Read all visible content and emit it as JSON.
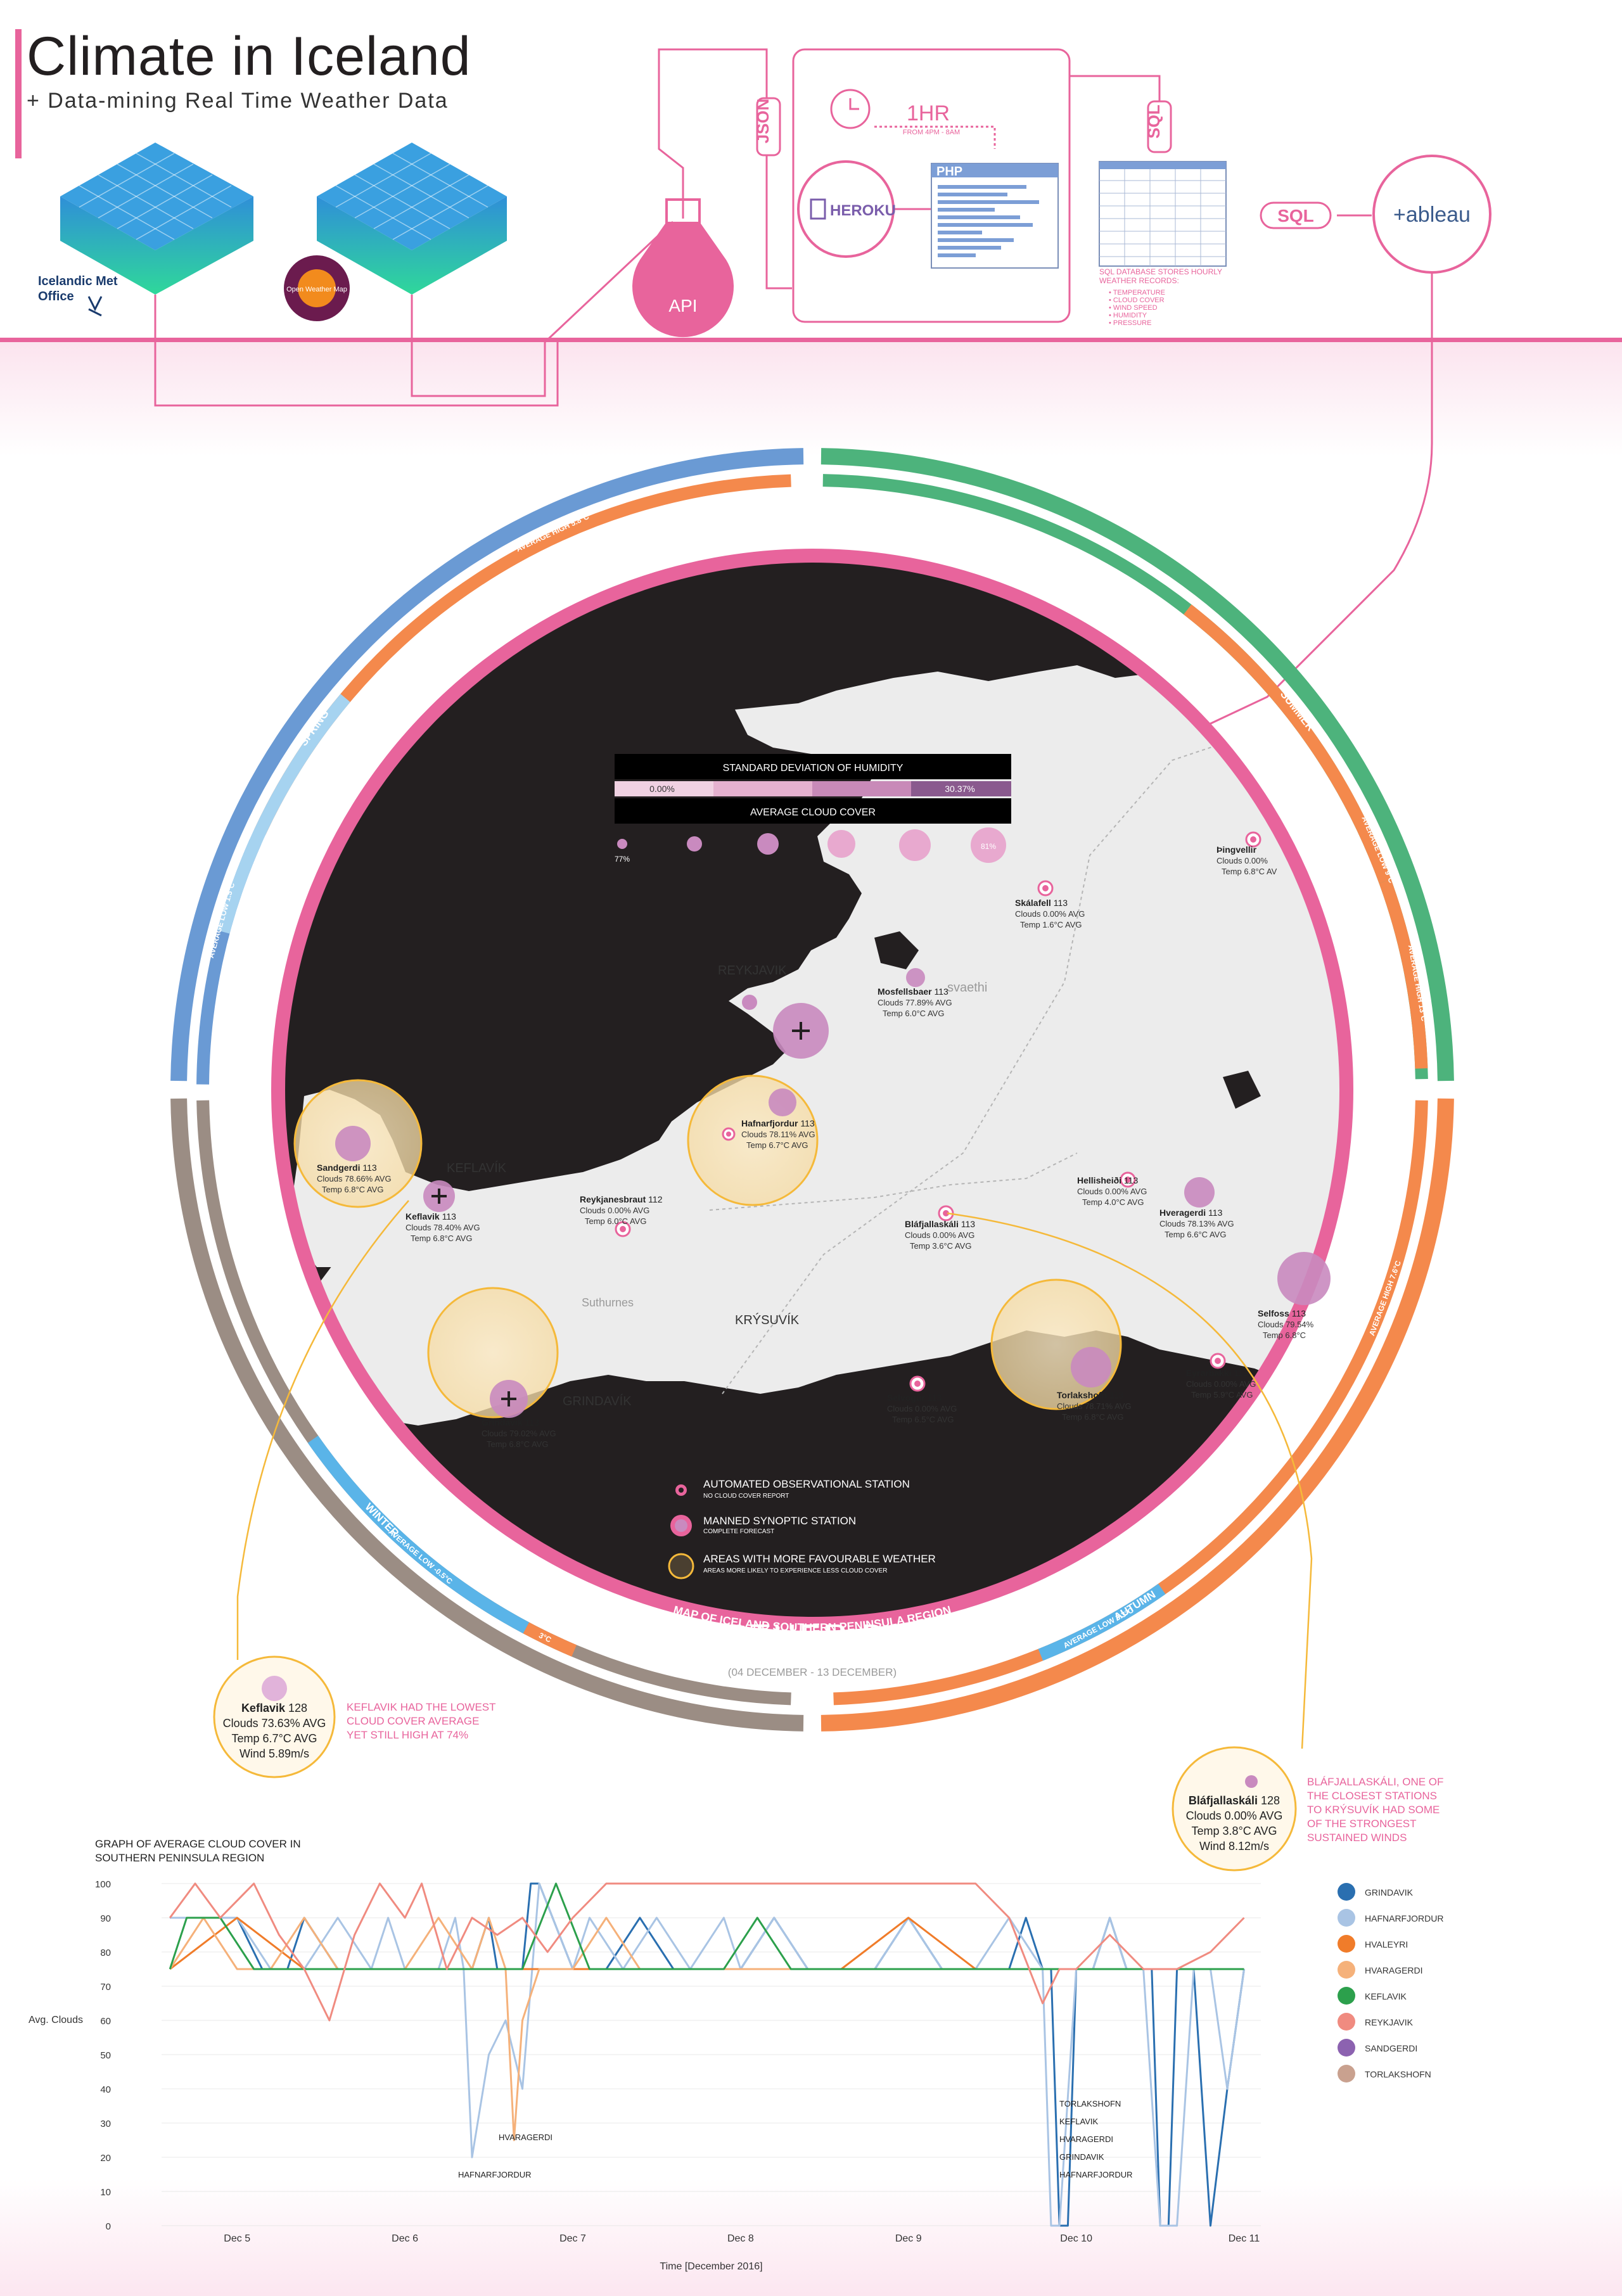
{
  "header": {
    "title": "Climate in Iceland",
    "subtitle": "+ Data-mining Real Time Weather Data"
  },
  "pipeline": {
    "source1": "Icelandic Met Office",
    "source2": "Open Weather Map",
    "json": "JSON",
    "api": "API",
    "interval": "1HR",
    "interval_note": "FROM 4PM - 8AM",
    "heroku": "HEROKU",
    "php": "PHP",
    "sql_vertical": "SQL",
    "sql_arrow": "SQL",
    "tableau": "+ableau",
    "db_note": [
      "SQL DATABASE STORES HOURLY",
      "WEATHER RECORDS:"
    ],
    "db_items": [
      "TEMPERATURE",
      "CLOUD COVER",
      "WIND SPEED",
      "HUMIDITY",
      "PRESSURE"
    ]
  },
  "seasons": {
    "spring": "SPRING",
    "summer": "SUMMER",
    "autumn": "AUTUMN",
    "winter": "WINTER",
    "spring_high": "AVERAGE HIGH 5.8°C",
    "summer_low": "AVERAGE LOW 9°C",
    "summer_high": "AVERAGE HIGH 13°C",
    "autumn_high": "AVERAGE HIGH 7.6°C",
    "autumn_low": "AVERAGE LOW 3.3°C",
    "winter_low": "AVERAGE LOW -0.5°C",
    "winter_high": "3°C",
    "spring_low": "AVERAGE LOW 1.5°C"
  },
  "map": {
    "legend_humidity_title": "STANDARD DEVIATION OF HUMIDITY",
    "legend_humidity_min": "0.00%",
    "legend_humidity_max": "30.37%",
    "legend_cloud_title": "AVERAGE CLOUD COVER",
    "legend_cloud_min": "77%",
    "legend_cloud_max": "81%",
    "place_labels": [
      "REYKJAVIK",
      "KEFLAVÍK",
      "GRINDAVÍK",
      "KRÝSUVÍK",
      "Suthurnes",
      "svaethi"
    ],
    "stations": [
      {
        "name": "Sandgerdi",
        "id": "113",
        "clouds": "Clouds 78.66% AVG",
        "temp": "Temp 6.8°C AVG"
      },
      {
        "name": "Keflavik",
        "id": "113",
        "clouds": "Clouds 78.40% AVG",
        "temp": "Temp 6.8°C AVG"
      },
      {
        "name": "Reykjanesbraut",
        "id": "112",
        "clouds": "Clouds 0.00% AVG",
        "temp": "Temp 6.0°C AVG"
      },
      {
        "name": "Hafnarfjordur",
        "id": "113",
        "clouds": "Clouds 78.11% AVG",
        "temp": "Temp 6.7°C AVG"
      },
      {
        "name": "Mosfellsbaer",
        "id": "113",
        "clouds": "Clouds 77.89% AVG",
        "temp": "Temp 6.0°C AVG"
      },
      {
        "name": "Skálafell",
        "id": "113",
        "clouds": "Clouds 0.00% AVG",
        "temp": "Temp 1.6°C AVG"
      },
      {
        "name": "Þingvellir",
        "id": "",
        "clouds": "Clouds 0.00%",
        "temp": "Temp 6.8°C AV"
      },
      {
        "name": "Hellisheiði",
        "id": "113",
        "clouds": "Clouds 0.00% AVG",
        "temp": "Temp 4.0°C AVG"
      },
      {
        "name": "Hveragerdi",
        "id": "113",
        "clouds": "Clouds 78.13% AVG",
        "temp": "Temp 6.6°C AVG"
      },
      {
        "name": "Bláfjallaskáli",
        "id": "113",
        "clouds": "Clouds 0.00% AVG",
        "temp": "Temp 3.6°C AVG"
      },
      {
        "name": "Selfoss",
        "id": "113",
        "clouds": "Clouds 79.54%",
        "temp": "Temp 6.8°C"
      },
      {
        "name": "Grindavik",
        "id": "113",
        "clouds": "Clouds 79.02% AVG",
        "temp": "Temp 6.8°C AVG"
      },
      {
        "name": "Selvogur",
        "id": "113",
        "clouds": "Clouds 0.00% AVG",
        "temp": "Temp 6.5°C AVG"
      },
      {
        "name": "Torlakshofn",
        "id": "113",
        "clouds": "Clouds 78.71% AVG",
        "temp": "Temp 6.8°C AVG"
      },
      {
        "name": "Eyrarbakki",
        "id": "113",
        "clouds": "Clouds 0.00% AVG",
        "temp": "Temp 5.9°C AVG"
      }
    ],
    "legend": [
      {
        "label": "AUTOMATED OBSERVATIONAL STATION",
        "note": "NO CLOUD COVER REPORT"
      },
      {
        "label": "MANNED SYNOPTIC STATION",
        "note": "COMPLETE FORECAST"
      },
      {
        "label": "AREAS WITH MORE FAVOURABLE WEATHER",
        "note": "AREAS MORE LIKELY TO EXPERIENCE LESS CLOUD COVER"
      }
    ],
    "title": "WEATHER DATA",
    "date_range": "(04 DECEMBER - 13 DECEMBER)",
    "ring_label": "MAP OF ICELAND SOUTHERN PENINSULA REGION"
  },
  "callouts": {
    "keflavik": {
      "name": "Keflavik",
      "id": "128",
      "clouds": "Clouds 73.63% AVG",
      "temp": "Temp 6.7°C AVG",
      "wind": "Wind 5.89m/s",
      "note": [
        "KEFLAVIK HAD THE LOWEST",
        "CLOUD COVER AVERAGE",
        "YET STILL HIGH AT 74%"
      ]
    },
    "blafjallaskali": {
      "name": "Bláfjallaskáli",
      "id": "128",
      "clouds": "Clouds 0.00% AVG",
      "temp": "Temp 3.8°C AVG",
      "wind": "Wind 8.12m/s",
      "note": [
        "BLÁFJALLASKÁLI, ONE OF",
        "THE CLOSEST STATIONS",
        "TO KRÝSUVÍK HAD SOME",
        "OF THE STRONGEST",
        "SUSTAINED WINDS"
      ]
    }
  },
  "colors": {
    "pink": "#e8649c",
    "map_dark": "#231f20",
    "land": "#ececec",
    "ring_pink": "#e8649c",
    "spring_blue": "#6a9ad4",
    "summer_green": "#4db37c",
    "autumn_orange": "#f4894c",
    "winter_taupe": "#9b8d84",
    "gold": "#f5b93a",
    "station": "#c98abf"
  },
  "chart_data": {
    "type": "line",
    "title": "GRAPH OF AVERAGE CLOUD COVER IN SOUTHERN PENINSULA REGION",
    "xlabel": "Time [December 2016]",
    "ylabel": "Avg. Clouds",
    "ylim": [
      0,
      100
    ],
    "yticks": [
      0,
      10,
      20,
      30,
      40,
      50,
      60,
      70,
      80,
      90,
      100
    ],
    "x_ticks": [
      "Dec 5",
      "Dec 6",
      "Dec 7",
      "Dec 8",
      "Dec 9",
      "Dec 10",
      "Dec 11"
    ],
    "annotations": [
      "HVARAGERDI",
      "HAFNARFJORDUR",
      "TORLAKSHOFN",
      "KEFLAVIK",
      "HVARAGERDI",
      "GRINDAVIK",
      "HAFNARFJORDUR"
    ],
    "series": [
      {
        "name": "GRINDAVIK",
        "color": "#2a6fb0",
        "x": [
          4.6,
          4.8,
          5.0,
          5.15,
          5.3,
          5.4,
          5.6,
          5.8,
          6.0,
          6.2,
          6.4,
          6.5,
          6.55,
          6.7,
          6.75,
          6.8,
          7.0,
          7.2,
          7.4,
          7.6,
          7.8,
          8.0,
          8.2,
          8.4,
          8.6,
          8.8,
          9.0,
          9.2,
          9.4,
          9.6,
          9.7,
          9.8,
          9.85,
          9.9,
          9.95,
          10.0,
          10.1,
          10.2,
          10.3,
          10.45,
          10.5,
          10.55,
          10.6,
          10.7,
          10.8,
          10.9,
          11.0
        ],
        "y": [
          90,
          90,
          90,
          75,
          75,
          90,
          75,
          75,
          75,
          75,
          75,
          90,
          75,
          75,
          100,
          100,
          75,
          75,
          90,
          75,
          75,
          75,
          90,
          75,
          75,
          75,
          90,
          75,
          75,
          75,
          90,
          75,
          75,
          0,
          0,
          75,
          75,
          90,
          75,
          75,
          0,
          0,
          75,
          75,
          0,
          40,
          75
        ]
      },
      {
        "name": "HAFNARFJORDUR",
        "color": "#a9c4e4",
        "x": [
          4.6,
          4.8,
          5.0,
          5.2,
          5.4,
          5.6,
          5.8,
          5.9,
          6.0,
          6.2,
          6.3,
          6.35,
          6.4,
          6.5,
          6.6,
          6.7,
          6.8,
          7.0,
          7.1,
          7.3,
          7.5,
          7.7,
          7.9,
          8.0,
          8.2,
          8.4,
          8.6,
          8.8,
          9.0,
          9.2,
          9.4,
          9.6,
          9.8,
          9.85,
          9.9,
          10.0,
          10.1,
          10.2,
          10.3,
          10.4,
          10.5,
          10.6,
          10.7,
          10.8,
          10.9,
          11.0
        ],
        "y": [
          90,
          90,
          90,
          75,
          75,
          90,
          75,
          90,
          75,
          75,
          90,
          75,
          20,
          50,
          60,
          40,
          100,
          75,
          90,
          75,
          90,
          75,
          90,
          75,
          90,
          75,
          75,
          75,
          90,
          75,
          75,
          90,
          75,
          0,
          0,
          75,
          75,
          90,
          75,
          75,
          0,
          0,
          75,
          75,
          40,
          75
        ]
      },
      {
        "name": "HVALEYRI",
        "color": "#f07c2a",
        "x": [
          4.6,
          5.0,
          5.4,
          5.8,
          6.2,
          6.6,
          7.0,
          7.4,
          7.8,
          8.2,
          8.6,
          9.0,
          9.4,
          9.8,
          10.2,
          10.6,
          11.0
        ],
        "y": [
          75,
          90,
          75,
          75,
          75,
          75,
          75,
          75,
          75,
          75,
          75,
          90,
          75,
          75,
          75,
          75,
          75
        ]
      },
      {
        "name": "HVARAGERDI",
        "color": "#f5b17a",
        "x": [
          4.6,
          4.8,
          5.0,
          5.2,
          5.4,
          5.6,
          5.8,
          6.0,
          6.2,
          6.4,
          6.5,
          6.6,
          6.65,
          6.7,
          6.8,
          7.0,
          7.2,
          7.4,
          7.6,
          7.8,
          8.0,
          8.2,
          8.4,
          8.6,
          8.8,
          9.0,
          9.2,
          9.4,
          9.6,
          9.8,
          9.9,
          10.0,
          10.2,
          10.4,
          10.6,
          10.8,
          11.0
        ],
        "y": [
          75,
          90,
          75,
          75,
          90,
          75,
          75,
          75,
          90,
          75,
          90,
          75,
          25,
          60,
          75,
          75,
          90,
          75,
          75,
          75,
          75,
          75,
          75,
          75,
          75,
          75,
          75,
          75,
          75,
          75,
          75,
          75,
          75,
          75,
          75,
          75,
          75
        ]
      },
      {
        "name": "KEFLAVIK",
        "color": "#2ca04c",
        "x": [
          4.6,
          4.7,
          4.9,
          5.1,
          5.3,
          5.5,
          5.7,
          5.9,
          6.1,
          6.3,
          6.5,
          6.7,
          6.9,
          7.1,
          7.3,
          7.5,
          7.7,
          7.9,
          8.1,
          8.3,
          8.5,
          8.7,
          8.9,
          9.1,
          9.3,
          9.5,
          9.7,
          9.9,
          10.1,
          10.3,
          10.5,
          10.7,
          10.9,
          11.0
        ],
        "y": [
          75,
          90,
          90,
          75,
          75,
          75,
          75,
          75,
          75,
          75,
          75,
          75,
          100,
          75,
          75,
          75,
          75,
          75,
          90,
          75,
          75,
          75,
          75,
          75,
          75,
          75,
          75,
          75,
          75,
          75,
          75,
          75,
          75,
          75
        ]
      },
      {
        "name": "REYKJAVIK",
        "color": "#f08b80",
        "x": [
          4.6,
          4.75,
          4.9,
          5.1,
          5.25,
          5.4,
          5.55,
          5.7,
          5.85,
          6.0,
          6.1,
          6.25,
          6.4,
          6.55,
          6.7,
          6.85,
          7.0,
          7.2,
          7.4,
          7.6,
          7.8,
          8.0,
          8.2,
          8.4,
          8.6,
          8.8,
          9.0,
          9.2,
          9.4,
          9.6,
          9.8,
          9.9,
          10.0,
          10.2,
          10.4,
          10.6,
          10.8,
          11.0
        ],
        "y": [
          90,
          100,
          90,
          100,
          85,
          75,
          60,
          85,
          100,
          90,
          100,
          75,
          90,
          85,
          90,
          80,
          90,
          100,
          100,
          100,
          100,
          100,
          100,
          100,
          100,
          100,
          100,
          100,
          100,
          90,
          65,
          75,
          75,
          85,
          75,
          75,
          80,
          90
        ]
      },
      {
        "name": "SANDGERDI",
        "color": "#8c62b0",
        "x": [],
        "y": []
      },
      {
        "name": "TORLAKSHOFN",
        "color": "#c9a18f",
        "x": [],
        "y": []
      }
    ]
  }
}
